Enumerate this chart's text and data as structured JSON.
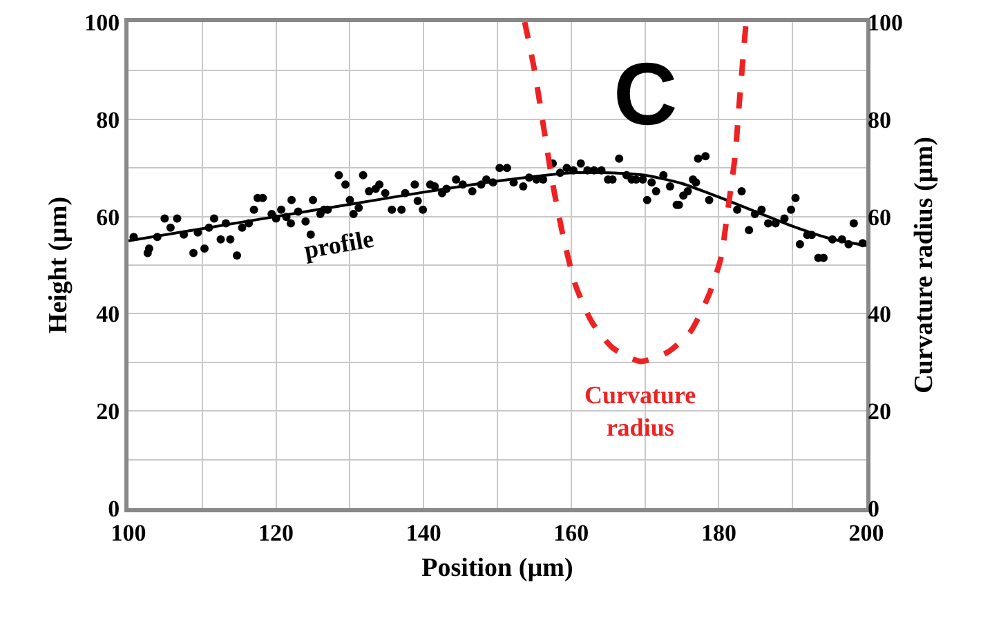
{
  "chart_data": {
    "type": "scatter",
    "xlabel": "Position (µm)",
    "ylabel": "Height (µm)",
    "y2label": "Curvature radius (µm)",
    "annotations": [
      "C"
    ],
    "xlim": [
      100,
      200
    ],
    "ylim": [
      0,
      100
    ],
    "y2lim": [
      0,
      100
    ],
    "xticks": [
      100,
      {
        "value": 110,
        "label": null
      },
      120,
      {
        "value": 130,
        "label": null
      },
      140,
      {
        "value": 150,
        "label": null
      },
      160,
      {
        "value": 170,
        "label": null
      },
      180,
      {
        "value": 190,
        "label": null
      },
      200
    ],
    "yticks": [
      0,
      {
        "value": 10,
        "label": null
      },
      20,
      {
        "value": 30,
        "label": null
      },
      40,
      {
        "value": 50,
        "label": null
      },
      60,
      {
        "value": 70,
        "label": null
      },
      80,
      {
        "value": 90,
        "label": null
      },
      100
    ],
    "y2ticks": [
      0,
      20,
      40,
      60,
      80,
      100
    ],
    "grid": true,
    "series": [
      {
        "name": "profile",
        "marker": "circle",
        "color": "#000000",
        "x": [
          100.7,
          102.6,
          102.8,
          103.9,
          104.9,
          105.7,
          106.6,
          107.5,
          108.8,
          109.4,
          110.3,
          110.9,
          111.6,
          112.5,
          113.2,
          113.8,
          114.7,
          115.4,
          116.3,
          117,
          117.5,
          118.2,
          119.4,
          120,
          120.7,
          121.4,
          122,
          122.1,
          123,
          124,
          124.7,
          125,
          126,
          126.5,
          127,
          128.5,
          129.4,
          130,
          130.5,
          131.2,
          131.8,
          132.6,
          133.5,
          134,
          134.8,
          135.7,
          137,
          137.5,
          138.8,
          139.2,
          139.9,
          140.9,
          141.5,
          142.5,
          143.1,
          144.4,
          145.3,
          146.6,
          147.8,
          148.5,
          149.4,
          150.3,
          151.3,
          152.2,
          153.5,
          154.3,
          155.3,
          156.2,
          157.5,
          158.5,
          159.4,
          160.3,
          161.3,
          162.2,
          163.1,
          164.1,
          165,
          165.6,
          166.5,
          167.5,
          168.2,
          168.8,
          169.7,
          170.3,
          170.9,
          171.5,
          172.5,
          173.4,
          174.3,
          174.6,
          175.2,
          175.8,
          176.5,
          176.9,
          177.2,
          178.2,
          178.7,
          182.5,
          183.1,
          184.1,
          184.9,
          185.8,
          186.7,
          187.7,
          188.9,
          189.8,
          190.4,
          191,
          192,
          192.6,
          193.5,
          194.2,
          195.4,
          196.7,
          197.6,
          198.3,
          199.5
        ],
        "values": [
          55.8,
          52.5,
          53.4,
          55.8,
          59.6,
          57.7,
          59.6,
          56.3,
          52.5,
          56.7,
          53.4,
          57.7,
          59.6,
          55.3,
          58.6,
          55.3,
          52,
          57.7,
          58.6,
          61.4,
          63.8,
          63.8,
          60.5,
          59.6,
          61.4,
          59.9,
          58.6,
          63.4,
          61,
          59,
          56.3,
          63.4,
          60.5,
          61.4,
          61.4,
          68.5,
          66.6,
          63.4,
          60.5,
          61.8,
          68.5,
          65.2,
          65.7,
          66.6,
          64.8,
          61.4,
          61.4,
          64.8,
          66.6,
          63.2,
          61.4,
          66.6,
          66.2,
          64.8,
          65.7,
          67.6,
          66.6,
          65.2,
          66.6,
          67.6,
          67,
          70,
          70,
          67,
          66.2,
          68,
          67.6,
          67.6,
          70.9,
          69,
          70,
          69.5,
          70.9,
          69.5,
          69.5,
          69.5,
          67.6,
          67.6,
          71.9,
          68.5,
          67.6,
          67.6,
          67.6,
          63.4,
          67,
          65.2,
          68.5,
          66.2,
          62.4,
          62.4,
          64.3,
          65.2,
          67.6,
          67,
          71.9,
          72.4,
          63.4,
          61.4,
          65.2,
          57.2,
          60.5,
          61.4,
          58.6,
          58.6,
          59.6,
          61.4,
          63.8,
          54.3,
          56.2,
          56.2,
          51.5,
          51.5,
          55.3,
          55.3,
          54.3,
          58.6,
          54.5
        ]
      },
      {
        "type": "line",
        "line_style": "solid",
        "color": "#000000",
        "x": [
          100,
          110,
          120,
          130,
          140,
          150,
          160,
          165,
          170,
          175,
          180,
          185,
          190,
          195,
          200
        ],
        "values": [
          55,
          57.5,
          60,
          62.5,
          65,
          67.3,
          69,
          69,
          68.5,
          66.8,
          64,
          61,
          58,
          55.5,
          54
        ]
      },
      {
        "name": "Curvature radius",
        "type": "line",
        "line_style": "dashed",
        "axis": "y2",
        "color": "#ee2222",
        "x": [
          153.7,
          155,
          156.2,
          157.5,
          159,
          160.6,
          162.8,
          165.6,
          169.4,
          173.1,
          176.2,
          178.7,
          180.3,
          181.2,
          182.2,
          182.8,
          183.7
        ],
        "values": [
          100,
          90.3,
          79,
          66.7,
          55.3,
          45.8,
          38.3,
          33,
          30.2,
          32.1,
          36.4,
          44,
          51.5,
          61,
          72.3,
          83.7,
          100
        ]
      }
    ]
  }
}
